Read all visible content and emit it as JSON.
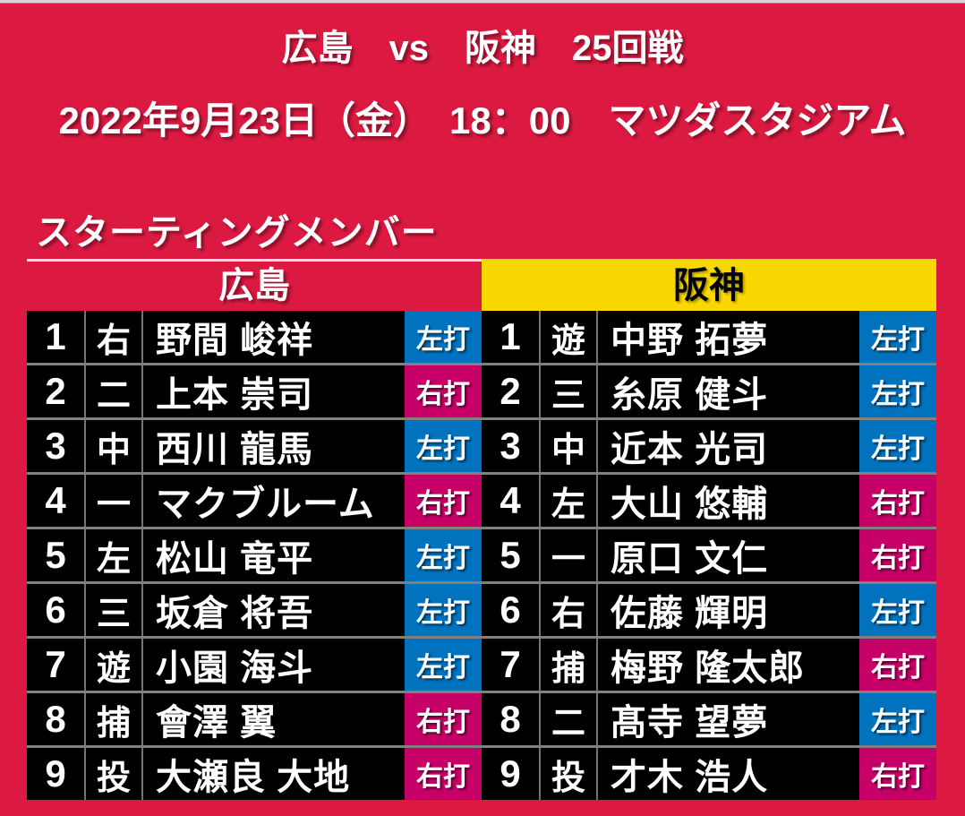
{
  "page": {
    "title": "広島　vs　阪神　25回戦",
    "datetime": "2022年9月23日（金）　18：00　マツダスタジアム"
  },
  "lineup": {
    "section_title": "スターティングメンバー",
    "bats_left_label": "左打",
    "bats_right_label": "右打",
    "teams": [
      {
        "name": "広島",
        "players": [
          {
            "order": "1",
            "position": "右",
            "name": "野間 峻祥",
            "bats": "左打"
          },
          {
            "order": "2",
            "position": "二",
            "name": "上本 崇司",
            "bats": "右打"
          },
          {
            "order": "3",
            "position": "中",
            "name": "西川 龍馬",
            "bats": "左打"
          },
          {
            "order": "4",
            "position": "一",
            "name": "マクブルーム",
            "bats": "右打"
          },
          {
            "order": "5",
            "position": "左",
            "name": "松山 竜平",
            "bats": "左打"
          },
          {
            "order": "6",
            "position": "三",
            "name": "坂倉 将吾",
            "bats": "左打"
          },
          {
            "order": "7",
            "position": "遊",
            "name": "小園 海斗",
            "bats": "左打"
          },
          {
            "order": "8",
            "position": "捕",
            "name": "會澤 翼",
            "bats": "右打"
          },
          {
            "order": "9",
            "position": "投",
            "name": "大瀬良 大地",
            "bats": "右打"
          }
        ]
      },
      {
        "name": "阪神",
        "players": [
          {
            "order": "1",
            "position": "遊",
            "name": "中野 拓夢",
            "bats": "左打"
          },
          {
            "order": "2",
            "position": "三",
            "name": "糸原 健斗",
            "bats": "左打"
          },
          {
            "order": "3",
            "position": "中",
            "name": "近本 光司",
            "bats": "左打"
          },
          {
            "order": "4",
            "position": "左",
            "name": "大山 悠輔",
            "bats": "右打"
          },
          {
            "order": "5",
            "position": "一",
            "name": "原口 文仁",
            "bats": "右打"
          },
          {
            "order": "6",
            "position": "右",
            "name": "佐藤 輝明",
            "bats": "左打"
          },
          {
            "order": "7",
            "position": "捕",
            "name": "梅野 隆太郎",
            "bats": "右打"
          },
          {
            "order": "8",
            "position": "二",
            "name": "髙寺 望夢",
            "bats": "左打"
          },
          {
            "order": "9",
            "position": "投",
            "name": "才木 浩人",
            "bats": "右打"
          }
        ]
      }
    ]
  },
  "colors": {
    "background_red": "#DC1A41",
    "hanshin_yellow": "#F8D800",
    "bats_left_blue": "#0072BE",
    "bats_right_pink": "#C60067",
    "row_black": "#000000"
  }
}
